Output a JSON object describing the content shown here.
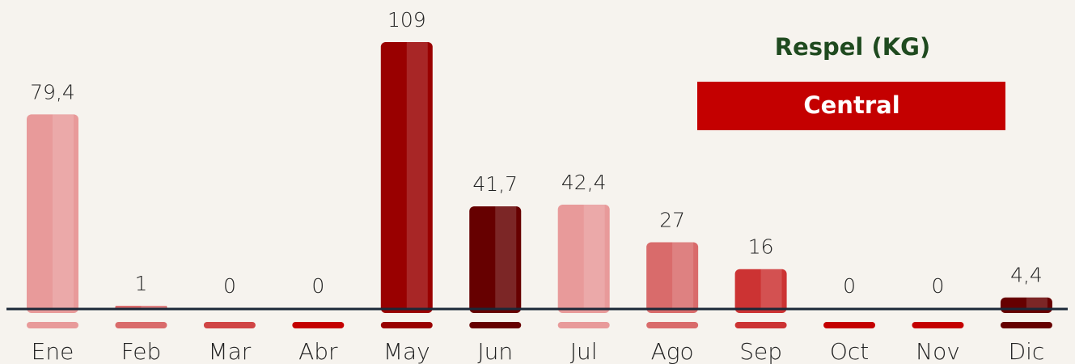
{
  "chart_data": {
    "type": "bar",
    "title": "Respel (KG)",
    "subtitle": "Central",
    "categories": [
      "Ene",
      "Feb",
      "Mar",
      "Abr",
      "May",
      "Jun",
      "Jul",
      "Ago",
      "Sep",
      "Oct",
      "Nov",
      "Dic"
    ],
    "values": [
      79.4,
      1,
      0,
      0,
      109,
      41.7,
      42.4,
      27,
      16,
      0,
      0,
      4.4
    ],
    "value_labels": [
      "79,4",
      "1",
      "0",
      "0",
      "109",
      "41,7",
      "42,4",
      "27",
      "16",
      "0",
      "0",
      "4,4"
    ],
    "colors": [
      "#e89a9a",
      "#d96b6b",
      "#d04545",
      "#c40000",
      "#990000",
      "#660000",
      "#e89a9a",
      "#d96b6b",
      "#cc3333",
      "#c40000",
      "#c40000",
      "#660000"
    ]
  }
}
